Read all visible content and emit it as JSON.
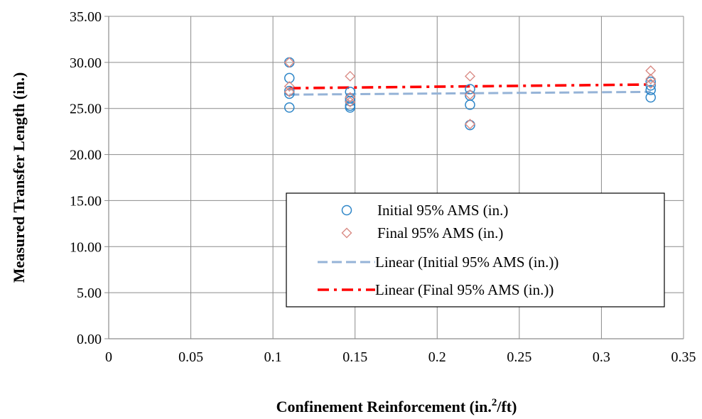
{
  "chart_data": {
    "type": "scatter",
    "title": "",
    "xlabel": "Confinement Reinforcement (in.",
    "xlabel_sup": "2",
    "xlabel_tail": "/ft)",
    "ylabel": "Measured Transfer Length (in.)",
    "xlim": [
      0,
      0.35
    ],
    "ylim": [
      0,
      35
    ],
    "x_ticks": [
      0,
      0.05,
      0.1,
      0.15,
      0.2,
      0.25,
      0.3,
      0.35
    ],
    "x_tick_labels": [
      "0",
      "0.05",
      "0.1",
      "0.15",
      "0.2",
      "0.25",
      "0.3",
      "0.35"
    ],
    "y_ticks": [
      0,
      5,
      10,
      15,
      20,
      25,
      30,
      35
    ],
    "y_tick_labels": [
      "0.00",
      "5.00",
      "10.00",
      "15.00",
      "20.00",
      "25.00",
      "30.00",
      "35.00"
    ],
    "grid": true,
    "legend_position": "lower-right",
    "series": [
      {
        "name": "Initial 95% AMS (in.)",
        "marker": "circle",
        "color": "#2e86c8",
        "x": [
          0.11,
          0.11,
          0.11,
          0.11,
          0.11,
          0.147,
          0.147,
          0.147,
          0.147,
          0.147,
          0.22,
          0.22,
          0.22,
          0.22,
          0.33,
          0.33,
          0.33,
          0.33
        ],
        "y": [
          30.0,
          28.3,
          26.9,
          26.6,
          25.1,
          26.8,
          26.1,
          25.8,
          25.3,
          25.1,
          27.1,
          26.4,
          25.4,
          23.2,
          27.9,
          27.5,
          27.0,
          26.2
        ]
      },
      {
        "name": "Final 95% AMS (in.)",
        "marker": "diamond",
        "color": "#d98a84",
        "x": [
          0.11,
          0.11,
          0.11,
          0.147,
          0.147,
          0.147,
          0.22,
          0.22,
          0.22,
          0.33,
          0.33,
          0.33
        ],
        "y": [
          30.0,
          27.4,
          26.8,
          28.5,
          26.2,
          25.7,
          28.5,
          26.5,
          23.3,
          29.1,
          28.2,
          27.7
        ]
      },
      {
        "name": "Linear (Initial 95% AMS (in.))",
        "type": "trendline",
        "style": "dashed",
        "color": "#95b3d7",
        "x": [
          0.11,
          0.33
        ],
        "y": [
          26.5,
          26.8
        ]
      },
      {
        "name": "Linear (Final 95% AMS (in.))",
        "type": "trendline",
        "style": "dash-dot",
        "color": "#ff0000",
        "x": [
          0.11,
          0.33
        ],
        "y": [
          27.2,
          27.6
        ]
      }
    ]
  }
}
